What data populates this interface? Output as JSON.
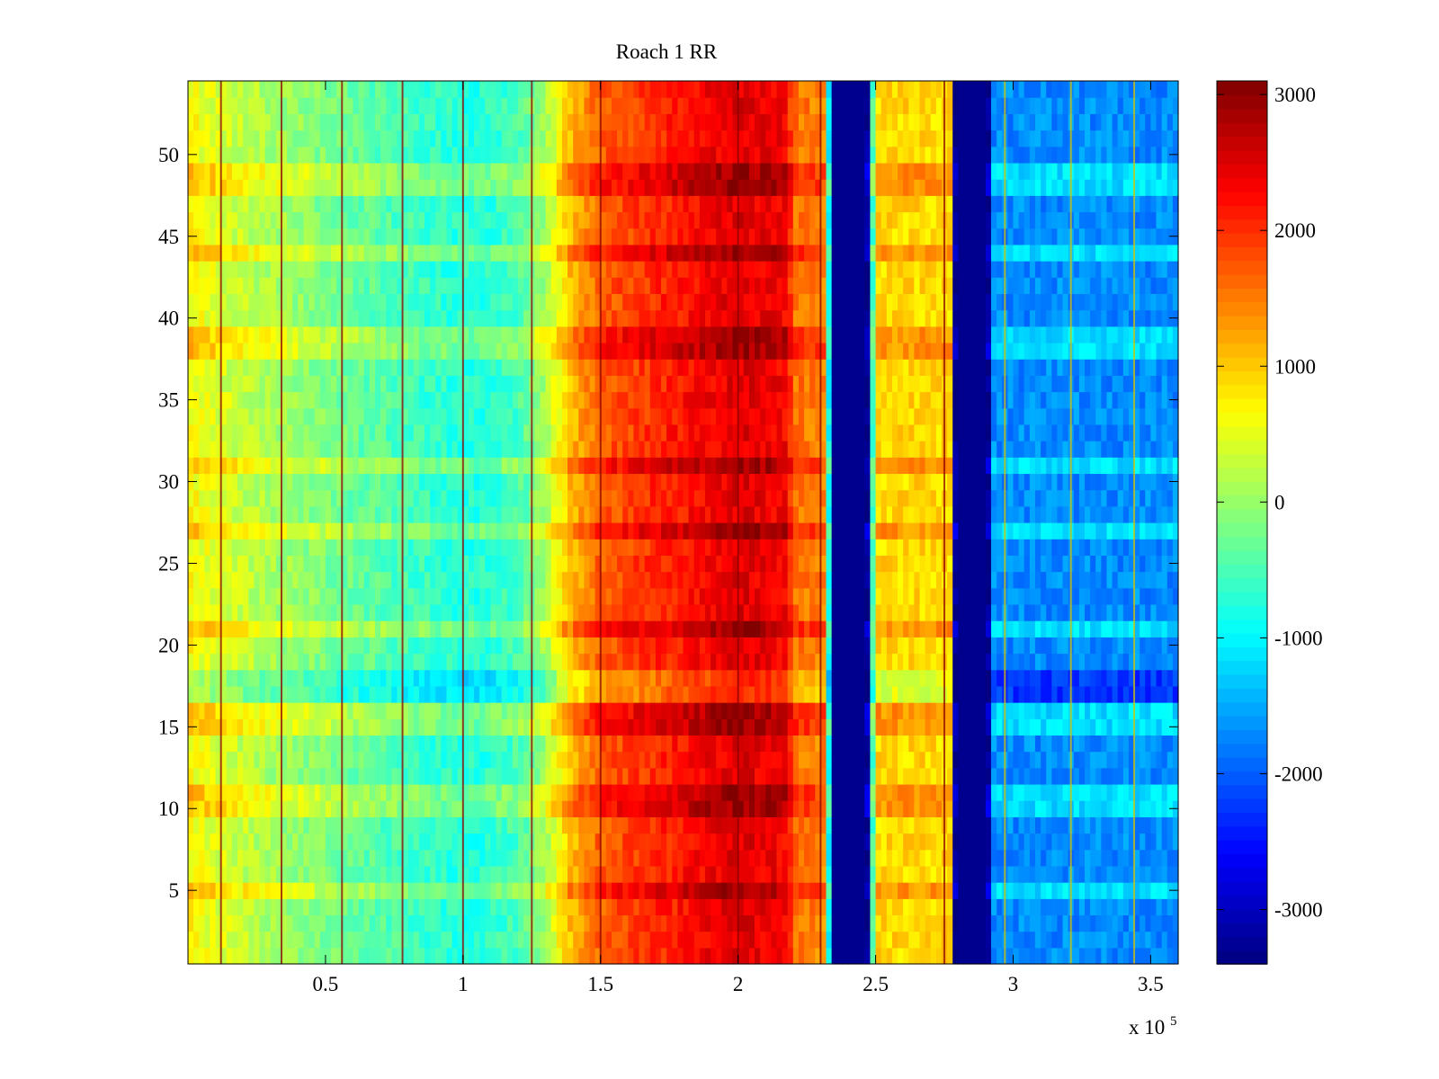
{
  "chart_data": {
    "type": "heatmap",
    "title": "Roach 1 RR",
    "xlabel": "",
    "ylabel": "",
    "x_multiplier_label": {
      "base": "x 10",
      "exponent": "5"
    },
    "xlim": [
      0,
      3.6
    ],
    "ylim": [
      0.5,
      54.5
    ],
    "x_ticks": [
      0.5,
      1,
      1.5,
      2,
      2.5,
      3,
      3.5
    ],
    "x_tick_labels": [
      "0.5",
      "1",
      "1.5",
      "2",
      "2.5",
      "3",
      "3.5"
    ],
    "y_ticks": [
      5,
      10,
      15,
      20,
      25,
      30,
      35,
      40,
      45,
      50
    ],
    "y_tick_labels": [
      "5",
      "10",
      "15",
      "20",
      "25",
      "30",
      "35",
      "40",
      "45",
      "50"
    ],
    "colormap": "jet",
    "clim": [
      -3400,
      3100
    ],
    "colorbar_ticks": [
      3000,
      2000,
      1000,
      0,
      -1000,
      -2000,
      -3000
    ],
    "colorbar_tick_labels": [
      "3000",
      "2000",
      "1000",
      "0",
      "-1000",
      "-2000",
      "-3000"
    ],
    "rows": 54,
    "column_profile": {
      "x": [
        0,
        0.05,
        0.3,
        0.6,
        0.9,
        1.05,
        1.2,
        1.3,
        1.38,
        1.5,
        1.75,
        2.0,
        2.18,
        2.2,
        2.32,
        2.34,
        2.47,
        2.5,
        2.77,
        2.79,
        2.91,
        2.93,
        3.6
      ],
      "values": [
        700,
        550,
        100,
        -300,
        -650,
        -750,
        -500,
        100,
        1000,
        1700,
        2100,
        2500,
        2300,
        1600,
        1400,
        -3300,
        -3300,
        900,
        900,
        -3300,
        -3300,
        -1700,
        -1700
      ]
    },
    "hot_rows": [
      5,
      10,
      11,
      15,
      16,
      21,
      27,
      31,
      38,
      39,
      44,
      45,
      48,
      49
    ],
    "cool_rows": [
      17,
      18,
      45
    ],
    "vertical_lines": [
      0.12,
      0.34,
      0.56,
      0.78,
      1.0,
      1.25,
      1.5,
      2.0,
      2.3,
      2.75,
      2.97,
      3.21,
      3.44
    ]
  }
}
